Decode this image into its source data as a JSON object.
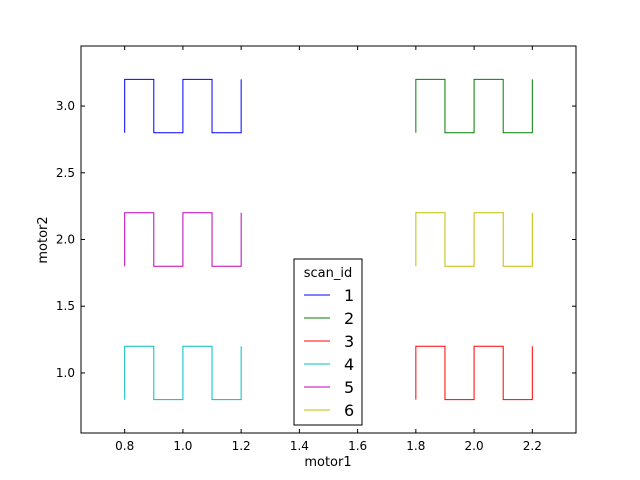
{
  "chart_data": {
    "type": "line",
    "xlabel": "motor1",
    "ylabel": "motor2",
    "xlim": [
      0.65,
      2.35
    ],
    "ylim": [
      0.55,
      3.45
    ],
    "xticks": [
      0.8,
      1.0,
      1.2,
      1.4,
      1.6,
      1.8,
      2.0,
      2.2
    ],
    "xtick_labels": [
      "0.8",
      "1.0",
      "1.2",
      "1.4",
      "1.6",
      "1.8",
      "2.0",
      "2.2"
    ],
    "yticks": [
      1.0,
      1.5,
      2.0,
      2.5,
      3.0
    ],
    "ytick_labels": [
      "1.0",
      "1.5",
      "2.0",
      "2.5",
      "3.0"
    ],
    "grid": false,
    "legend": {
      "title": "scan_id",
      "placement": "lower-center"
    },
    "series": [
      {
        "name": "1",
        "color": "#0000ff",
        "x": [
          0.8,
          0.8,
          0.9,
          0.9,
          1.0,
          1.0,
          1.1,
          1.1,
          1.2,
          1.2
        ],
        "y": [
          2.8,
          3.2,
          3.2,
          2.8,
          2.8,
          3.2,
          3.2,
          2.8,
          2.8,
          3.2
        ]
      },
      {
        "name": "2",
        "color": "#008000",
        "x": [
          1.8,
          1.8,
          1.9,
          1.9,
          2.0,
          2.0,
          2.1,
          2.1,
          2.2,
          2.2
        ],
        "y": [
          2.8,
          3.2,
          3.2,
          2.8,
          2.8,
          3.2,
          3.2,
          2.8,
          2.8,
          3.2
        ]
      },
      {
        "name": "3",
        "color": "#ff0000",
        "x": [
          1.8,
          1.8,
          1.9,
          1.9,
          2.0,
          2.0,
          2.1,
          2.1,
          2.2,
          2.2
        ],
        "y": [
          0.8,
          1.2,
          1.2,
          0.8,
          0.8,
          1.2,
          1.2,
          0.8,
          0.8,
          1.2
        ]
      },
      {
        "name": "4",
        "color": "#00bfbf",
        "x": [
          0.8,
          0.8,
          0.9,
          0.9,
          1.0,
          1.0,
          1.1,
          1.1,
          1.2,
          1.2
        ],
        "y": [
          0.8,
          1.2,
          1.2,
          0.8,
          0.8,
          1.2,
          1.2,
          0.8,
          0.8,
          1.2
        ]
      },
      {
        "name": "5",
        "color": "#bf00bf",
        "x": [
          0.8,
          0.8,
          0.9,
          0.9,
          1.0,
          1.0,
          1.1,
          1.1,
          1.2,
          1.2
        ],
        "y": [
          1.8,
          2.2,
          2.2,
          1.8,
          1.8,
          2.2,
          2.2,
          1.8,
          1.8,
          2.2
        ]
      },
      {
        "name": "6",
        "color": "#bfbf00",
        "x": [
          1.8,
          1.8,
          1.9,
          1.9,
          2.0,
          2.0,
          2.1,
          2.1,
          2.2,
          2.2
        ],
        "y": [
          1.8,
          2.2,
          2.2,
          1.8,
          1.8,
          2.2,
          2.2,
          1.8,
          1.8,
          2.2
        ]
      }
    ]
  }
}
